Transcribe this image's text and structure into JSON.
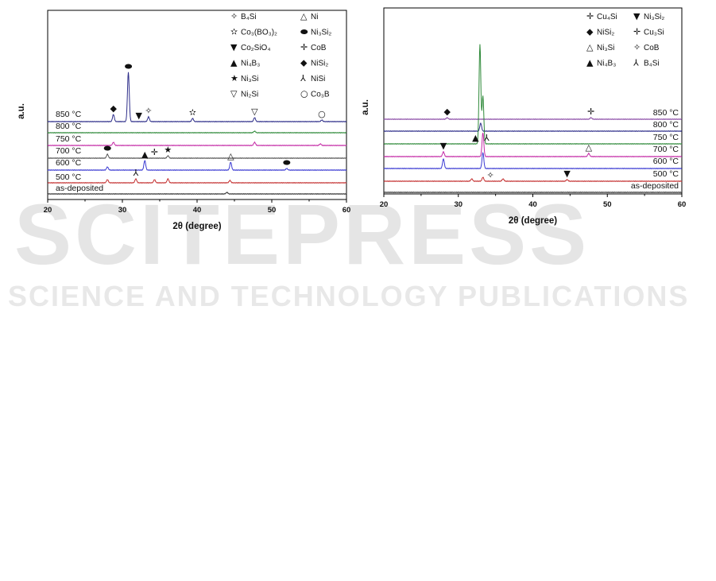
{
  "watermark": {
    "main": "SCITEPRESS",
    "sub": "SCIENCE AND TECHNOLOGY PUBLICATIONS"
  },
  "chart_data": [
    {
      "type": "line",
      "panel": "left",
      "xlabel": "2θ (degree)",
      "ylabel": "a.u.",
      "xlim": [
        20,
        60
      ],
      "xticks": [
        "20",
        "30",
        "40",
        "50",
        "60"
      ],
      "grid": false,
      "legend_position": "top-right",
      "legend": [
        {
          "symbol": "✧",
          "name": "B₄Si"
        },
        {
          "symbol": "△",
          "name": "Ni"
        },
        {
          "symbol": "✫",
          "name": "Co₃(BO₃)₂"
        },
        {
          "symbol": "⬬",
          "name": "Ni₃Si₂"
        },
        {
          "symbol": "▼",
          "name": "Co₂SiO₄"
        },
        {
          "symbol": "✛",
          "name": "CoB"
        },
        {
          "symbol": "▲",
          "name": "Ni₄B₃"
        },
        {
          "symbol": "◆",
          "name": "NiSi₂"
        },
        {
          "symbol": "★",
          "name": "Ni₃Si"
        },
        {
          "symbol": "⅄",
          "name": "NiSi"
        },
        {
          "symbol": "▽",
          "name": "Ni₂Si"
        },
        {
          "symbol": "○",
          "name": "Co₃B"
        }
      ],
      "series": [
        {
          "name": "850 °C",
          "color": "#2e2e8a",
          "peaks": [
            [
              28.8,
              9
            ],
            [
              30.8,
              62
            ],
            [
              33.5,
              6
            ],
            [
              39.4,
              4
            ],
            [
              47.7,
              5
            ],
            [
              56.7,
              2
            ]
          ]
        },
        {
          "name": "800 °C",
          "color": "#2f8a3a",
          "peaks": [
            [
              47.7,
              2
            ]
          ]
        },
        {
          "name": "750 °C",
          "color": "#c42aa6",
          "peaks": [
            [
              28.8,
              4
            ],
            [
              47.7,
              4
            ],
            [
              56.5,
              2
            ]
          ]
        },
        {
          "name": "700 °C",
          "color": "#555555",
          "peaks": [
            [
              28.0,
              5
            ],
            [
              32.9,
              3
            ],
            [
              36.1,
              3
            ]
          ]
        },
        {
          "name": "600 °C",
          "color": "#3a3ad2",
          "peaks": [
            [
              28.0,
              4
            ],
            [
              33.0,
              12
            ],
            [
              44.5,
              10
            ],
            [
              52.0,
              2
            ]
          ]
        },
        {
          "name": "500 °C",
          "color": "#c43030",
          "peaks": [
            [
              28.0,
              4
            ],
            [
              31.8,
              5
            ],
            [
              34.3,
              4
            ],
            [
              36.1,
              5
            ],
            [
              44.4,
              3
            ]
          ]
        },
        {
          "name": "as-deposited",
          "color": "#333333",
          "peaks": [
            [
              44.0,
              2
            ]
          ]
        }
      ],
      "annotations": [
        {
          "series": "850 °C",
          "x": 28.8,
          "symbol": "◆"
        },
        {
          "series": "850 °C",
          "x": 30.8,
          "symbol": "⬬"
        },
        {
          "series": "850 °C",
          "x": 32.2,
          "symbol": "▼"
        },
        {
          "series": "850 °C",
          "x": 33.5,
          "symbol": "✧"
        },
        {
          "series": "850 °C",
          "x": 39.4,
          "symbol": "✫"
        },
        {
          "series": "850 °C",
          "x": 47.7,
          "symbol": "▽"
        },
        {
          "series": "850 °C",
          "x": 56.7,
          "symbol": "○"
        },
        {
          "series": "700 °C",
          "x": 28.0,
          "symbol": "⬬"
        },
        {
          "series": "700 °C",
          "x": 34.3,
          "symbol": "✛"
        },
        {
          "series": "700 °C",
          "x": 36.1,
          "symbol": "★"
        },
        {
          "series": "600 °C",
          "x": 33.0,
          "symbol": "▲"
        },
        {
          "series": "600 °C",
          "x": 44.5,
          "symbol": "△"
        },
        {
          "series": "600 °C",
          "x": 52.0,
          "symbol": "⬬"
        },
        {
          "series": "500 °C",
          "x": 31.8,
          "symbol": "⅄"
        }
      ]
    },
    {
      "type": "line",
      "panel": "right",
      "xlabel": "2θ (degree)",
      "ylabel": "a.u.",
      "xlim": [
        20,
        60
      ],
      "xticks": [
        "20",
        "30",
        "40",
        "50",
        "60"
      ],
      "grid": false,
      "legend_position": "top-right",
      "legend": [
        {
          "symbol": "✛",
          "name": "Cu₄Si"
        },
        {
          "symbol": "▼",
          "name": "Ni₃Si₂"
        },
        {
          "symbol": "◆",
          "name": "NiSi₂"
        },
        {
          "symbol": "✛",
          "name": "Cu₃Si"
        },
        {
          "symbol": "△",
          "name": "Ni₃Si"
        },
        {
          "symbol": "✧",
          "name": "CoB"
        },
        {
          "symbol": "▲",
          "name": "Ni₄B₃"
        },
        {
          "symbol": "⅄",
          "name": "B₄Si"
        }
      ],
      "series": [
        {
          "name": "850 °C",
          "color": "#8a4aa6",
          "peaks": [
            [
              28.5,
              2
            ],
            [
              47.8,
              2
            ]
          ]
        },
        {
          "name": "800 °C",
          "color": "#2e2e8a",
          "peaks": [
            [
              33.0,
              10
            ]
          ]
        },
        {
          "name": "750 °C",
          "color": "#2f8a3a",
          "peaks": [
            [
              32.9,
              125
            ],
            [
              33.3,
              60
            ]
          ]
        },
        {
          "name": "700 °C",
          "color": "#c42aa6",
          "peaks": [
            [
              28.0,
              6
            ],
            [
              33.3,
              30
            ],
            [
              47.5,
              4
            ]
          ]
        },
        {
          "name": "600 °C",
          "color": "#3a3ad2",
          "peaks": [
            [
              28.0,
              12
            ],
            [
              33.3,
              20
            ]
          ]
        },
        {
          "name": "500 °C",
          "color": "#c43030",
          "peaks": [
            [
              31.8,
              3
            ],
            [
              33.3,
              5
            ],
            [
              36.0,
              3
            ],
            [
              44.6,
              2
            ]
          ]
        },
        {
          "name": "as-deposited",
          "color": "#333333",
          "peaks": []
        }
      ],
      "annotations": [
        {
          "series": "750 °C",
          "x": 32.3,
          "symbol": "▲"
        },
        {
          "series": "750 °C",
          "x": 33.8,
          "symbol": "⅄"
        },
        {
          "series": "850 °C",
          "x": 28.5,
          "symbol": "◆"
        },
        {
          "series": "850 °C",
          "x": 47.8,
          "symbol": "✛"
        },
        {
          "series": "700 °C",
          "x": 28.0,
          "symbol": "▼"
        },
        {
          "series": "700 °C",
          "x": 47.5,
          "symbol": "△"
        },
        {
          "series": "500 °C",
          "x": 34.3,
          "symbol": "✧"
        },
        {
          "series": "500 °C",
          "x": 44.6,
          "symbol": "▼"
        }
      ]
    }
  ]
}
